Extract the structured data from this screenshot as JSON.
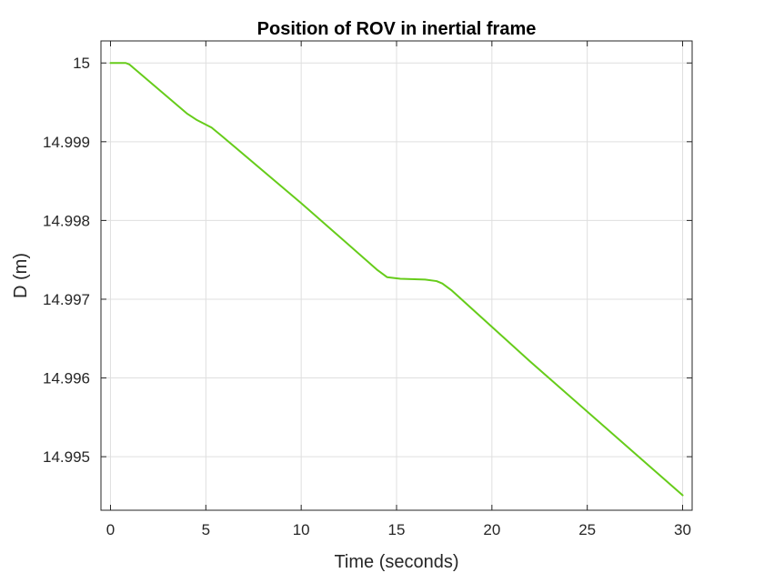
{
  "chart_data": {
    "type": "line",
    "title": "Position of ROV in inertial frame",
    "xlabel": "Time (seconds)",
    "ylabel": "D (m)",
    "xlim": [
      -0.5,
      30.5
    ],
    "ylim": [
      14.99432,
      15.00028
    ],
    "xticks": [
      0,
      5,
      10,
      15,
      20,
      25,
      30
    ],
    "xtick_labels": [
      "0",
      "5",
      "10",
      "15",
      "20",
      "25",
      "30"
    ],
    "yticks": [
      14.995,
      14.996,
      14.997,
      14.998,
      14.999,
      15
    ],
    "ytick_labels": [
      "14.995",
      "14.996",
      "14.997",
      "14.998",
      "14.999",
      "15"
    ],
    "grid": true,
    "color": "#66cc1a",
    "series": [
      {
        "x": [
          0,
          0.8,
          1.0,
          4.0,
          4.5,
          5.3,
          5.8,
          10,
          14.0,
          14.5,
          15.2,
          16.5,
          17.1,
          17.4,
          17.9,
          22,
          30
        ],
        "y": [
          15.0,
          15.0,
          14.99998,
          14.99936,
          14.99928,
          14.99918,
          14.99908,
          14.99822,
          14.99737,
          14.99728,
          14.99726,
          14.99725,
          14.99723,
          14.9972,
          14.99711,
          14.99621,
          14.99451
        ]
      }
    ]
  }
}
